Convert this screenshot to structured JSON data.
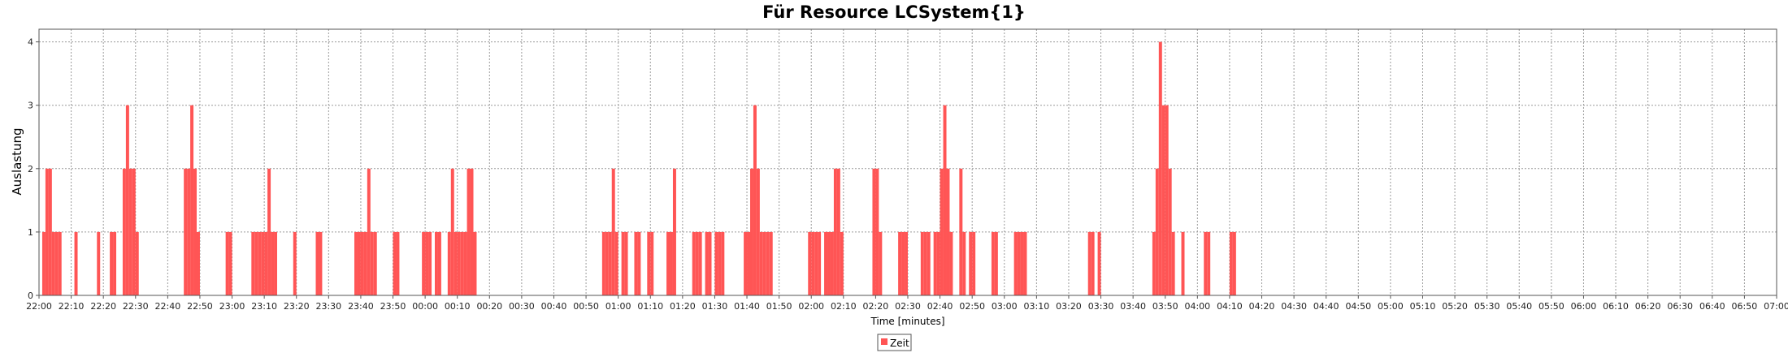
{
  "chart_data": {
    "type": "bar",
    "title": "Für Resource LCSystem{1}",
    "xlabel": "Time [minutes]",
    "ylabel": "Auslastung",
    "ylim": [
      0,
      4.2
    ],
    "y_ticks": [
      "0",
      "1",
      "2",
      "3",
      "4"
    ],
    "x_range": [
      "22:00",
      "07:00"
    ],
    "x_tick_labels": [
      "22:00",
      "22:10",
      "22:20",
      "22:30",
      "22:40",
      "22:50",
      "23:00",
      "23:10",
      "23:20",
      "23:30",
      "23:40",
      "23:50",
      "00:00",
      "00:10",
      "00:20",
      "00:30",
      "00:40",
      "00:50",
      "01:00",
      "01:10",
      "01:20",
      "01:30",
      "01:40",
      "01:50",
      "02:00",
      "02:10",
      "02:20",
      "02:30",
      "02:40",
      "02:50",
      "03:00",
      "03:10",
      "03:20",
      "03:30",
      "03:40",
      "03:50",
      "04:00",
      "04:10",
      "04:20",
      "04:30",
      "04:40",
      "04:50",
      "05:00",
      "05:10",
      "05:20",
      "05:30",
      "05:40",
      "05:50",
      "06:00",
      "06:10",
      "06:20",
      "06:30",
      "06:40",
      "06:50",
      "07:00"
    ],
    "grid": true,
    "legend_position": "bottom-center",
    "series": [
      {
        "name": "Zeit",
        "color": "#ff5555",
        "data": [
          [
            "22:01",
            1
          ],
          [
            "22:02",
            2
          ],
          [
            "22:03",
            2
          ],
          [
            "22:04",
            1
          ],
          [
            "22:05",
            1
          ],
          [
            "22:06",
            1
          ],
          [
            "22:11",
            1
          ],
          [
            "22:18",
            1
          ],
          [
            "22:22",
            1
          ],
          [
            "22:23",
            1
          ],
          [
            "22:26",
            2
          ],
          [
            "22:27",
            3
          ],
          [
            "22:28",
            2
          ],
          [
            "22:29",
            2
          ],
          [
            "22:30",
            1
          ],
          [
            "22:45",
            2
          ],
          [
            "22:46",
            2
          ],
          [
            "22:47",
            3
          ],
          [
            "22:48",
            2
          ],
          [
            "22:49",
            1
          ],
          [
            "22:58",
            1
          ],
          [
            "22:59",
            1
          ],
          [
            "23:06",
            1
          ],
          [
            "23:07",
            1
          ],
          [
            "23:08",
            1
          ],
          [
            "23:09",
            1
          ],
          [
            "23:10",
            1
          ],
          [
            "23:11",
            2
          ],
          [
            "23:12",
            1
          ],
          [
            "23:13",
            1
          ],
          [
            "23:19",
            1
          ],
          [
            "23:26",
            1
          ],
          [
            "23:27",
            1
          ],
          [
            "23:38",
            1
          ],
          [
            "23:39",
            1
          ],
          [
            "23:40",
            1
          ],
          [
            "23:41",
            1
          ],
          [
            "23:42",
            2
          ],
          [
            "23:43",
            1
          ],
          [
            "23:44",
            1
          ],
          [
            "23:50",
            1
          ],
          [
            "23:51",
            1
          ],
          [
            "23:59",
            1
          ],
          [
            "00:00",
            1
          ],
          [
            "00:01",
            1
          ],
          [
            "00:03",
            1
          ],
          [
            "00:04",
            1
          ],
          [
            "00:07",
            1
          ],
          [
            "00:08",
            2
          ],
          [
            "00:09",
            1
          ],
          [
            "00:10",
            1
          ],
          [
            "00:11",
            1
          ],
          [
            "00:12",
            1
          ],
          [
            "00:13",
            2
          ],
          [
            "00:14",
            2
          ],
          [
            "00:15",
            1
          ],
          [
            "00:55",
            1
          ],
          [
            "00:56",
            1
          ],
          [
            "00:57",
            1
          ],
          [
            "00:58",
            2
          ],
          [
            "00:59",
            1
          ],
          [
            "01:01",
            1
          ],
          [
            "01:02",
            1
          ],
          [
            "01:05",
            1
          ],
          [
            "01:06",
            1
          ],
          [
            "01:09",
            1
          ],
          [
            "01:10",
            1
          ],
          [
            "01:15",
            1
          ],
          [
            "01:16",
            1
          ],
          [
            "01:17",
            2
          ],
          [
            "01:23",
            1
          ],
          [
            "01:24",
            1
          ],
          [
            "01:25",
            1
          ],
          [
            "01:27",
            1
          ],
          [
            "01:28",
            1
          ],
          [
            "01:30",
            1
          ],
          [
            "01:31",
            1
          ],
          [
            "01:32",
            1
          ],
          [
            "01:39",
            1
          ],
          [
            "01:40",
            1
          ],
          [
            "01:41",
            2
          ],
          [
            "01:42",
            3
          ],
          [
            "01:43",
            2
          ],
          [
            "01:44",
            1
          ],
          [
            "01:45",
            1
          ],
          [
            "01:46",
            1
          ],
          [
            "01:47",
            1
          ],
          [
            "01:59",
            1
          ],
          [
            "02:00",
            1
          ],
          [
            "02:01",
            1
          ],
          [
            "02:02",
            1
          ],
          [
            "02:04",
            1
          ],
          [
            "02:05",
            1
          ],
          [
            "02:06",
            1
          ],
          [
            "02:07",
            2
          ],
          [
            "02:08",
            2
          ],
          [
            "02:09",
            1
          ],
          [
            "02:19",
            2
          ],
          [
            "02:20",
            2
          ],
          [
            "02:21",
            1
          ],
          [
            "02:27",
            1
          ],
          [
            "02:28",
            1
          ],
          [
            "02:29",
            1
          ],
          [
            "02:34",
            1
          ],
          [
            "02:35",
            1
          ],
          [
            "02:36",
            1
          ],
          [
            "02:38",
            1
          ],
          [
            "02:39",
            1
          ],
          [
            "02:40",
            2
          ],
          [
            "02:41",
            3
          ],
          [
            "02:42",
            2
          ],
          [
            "02:43",
            1
          ],
          [
            "02:46",
            2
          ],
          [
            "02:47",
            1
          ],
          [
            "02:49",
            1
          ],
          [
            "02:50",
            1
          ],
          [
            "02:56",
            1
          ],
          [
            "02:57",
            1
          ],
          [
            "03:03",
            1
          ],
          [
            "03:04",
            1
          ],
          [
            "03:05",
            1
          ],
          [
            "03:06",
            1
          ],
          [
            "03:26",
            1
          ],
          [
            "03:27",
            1
          ],
          [
            "03:29",
            1
          ],
          [
            "03:46",
            1
          ],
          [
            "03:47",
            2
          ],
          [
            "03:48",
            4
          ],
          [
            "03:49",
            3
          ],
          [
            "03:50",
            3
          ],
          [
            "03:51",
            2
          ],
          [
            "03:52",
            1
          ],
          [
            "03:55",
            1
          ],
          [
            "04:02",
            1
          ],
          [
            "04:03",
            1
          ],
          [
            "04:10",
            1
          ],
          [
            "04:11",
            1
          ]
        ]
      }
    ]
  }
}
